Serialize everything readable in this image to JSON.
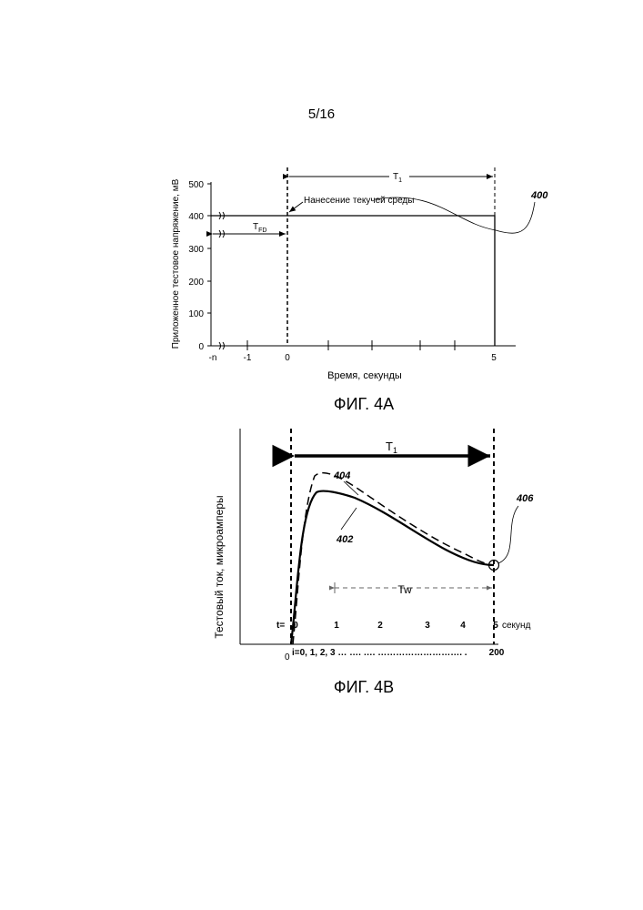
{
  "page_number": "5/16",
  "fig4a": {
    "caption": "ФИГ. 4А",
    "ylabel": "Приложенное тестовое напряжение, мВ",
    "xlabel": "Время, секунды",
    "annotation": "Нанесение текучей среды",
    "t1": "T",
    "t1_sub": "1",
    "tfd": "T",
    "tfd_sub": "FD",
    "ref_400": "400",
    "yticks": [
      "500",
      "400",
      "300",
      "200",
      "100",
      "0"
    ],
    "xticks": [
      "-n",
      "-1",
      "0",
      "5"
    ]
  },
  "fig4b": {
    "caption": "ФИГ. 4В",
    "ylabel": "Тестовый ток, микроамперы",
    "t1": "T",
    "t1_sub": "1",
    "tw": "Tw",
    "ref_402": "402",
    "ref_404": "404",
    "ref_406": "406",
    "t_prefix": "t=",
    "t_ticks": [
      "0",
      "1",
      "2",
      "3",
      "4",
      "5"
    ],
    "t_unit": "секунд",
    "i_row": "i=0, 1, 2, 3 … …. …. ………………………. .",
    "i_end": "200",
    "origin": "0"
  },
  "chart_data": [
    {
      "type": "line",
      "title": "",
      "xlabel": "Время, секунды",
      "ylabel": "Приложенное тестовое напряжение, мВ",
      "ylim": [
        0,
        500
      ],
      "yticks": [
        0,
        100,
        200,
        300,
        400,
        500
      ],
      "xticks": [
        "-n",
        "-1",
        "0",
        "5"
      ],
      "series": [
        {
          "name": "400",
          "x": [
            -2,
            0,
            0,
            5,
            5
          ],
          "y": [
            400,
            400,
            400,
            400,
            0
          ]
        }
      ],
      "annotations": [
        "Нанесение текучей среды",
        "T1",
        "TFD"
      ]
    },
    {
      "type": "line",
      "title": "",
      "xlabel": "",
      "ylabel": "Тестовый ток, микроамперы",
      "xlim": [
        0,
        5
      ],
      "xticks": [
        0,
        1,
        2,
        3,
        4,
        5
      ],
      "series": [
        {
          "name": "402",
          "x": [
            0,
            0.2,
            0.5,
            1,
            2,
            3,
            4,
            5
          ],
          "y": [
            0,
            0.9,
            0.92,
            0.9,
            0.76,
            0.57,
            0.42,
            0.4
          ]
        },
        {
          "name": "404",
          "x": [
            0,
            0.2,
            0.5,
            1,
            2,
            3,
            4,
            5
          ],
          "y": [
            0,
            1.0,
            0.99,
            0.95,
            0.8,
            0.6,
            0.43,
            0.4
          ]
        }
      ],
      "annotations": [
        "T1",
        "Tw",
        "406"
      ]
    }
  ]
}
